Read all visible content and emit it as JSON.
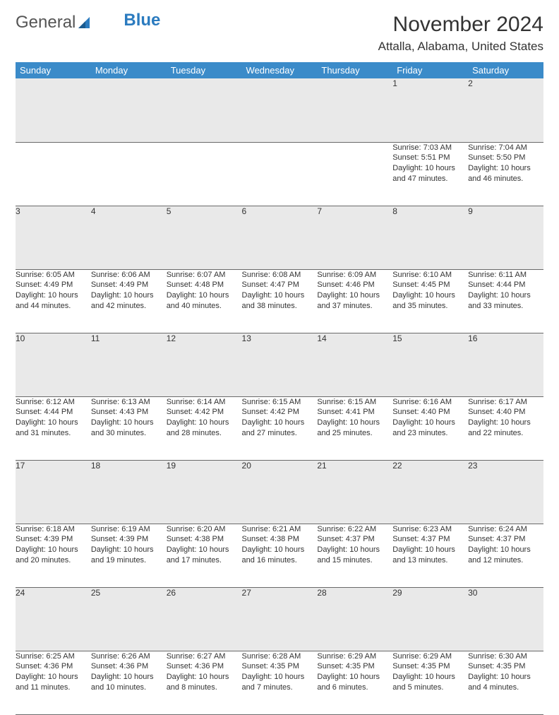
{
  "logo": {
    "text_a": "General",
    "text_b": "Blue"
  },
  "title": "November 2024",
  "location": "Attalla, Alabama, United States",
  "colors": {
    "header_bg": "#3b8bc9",
    "header_fg": "#ffffff",
    "daynum_bg": "#e9e9e9",
    "border": "#6a6a6a",
    "text": "#333333",
    "logo_blue": "#2b7bbf"
  },
  "typography": {
    "title_fontsize": 30,
    "location_fontsize": 17,
    "weekday_fontsize": 13,
    "daynum_fontsize": 12,
    "detail_fontsize": 11
  },
  "weekdays": [
    "Sunday",
    "Monday",
    "Tuesday",
    "Wednesday",
    "Thursday",
    "Friday",
    "Saturday"
  ],
  "weeks": [
    [
      null,
      null,
      null,
      null,
      null,
      {
        "n": "1",
        "sr": "Sunrise: 7:03 AM",
        "ss": "Sunset: 5:51 PM",
        "dl": "Daylight: 10 hours and 47 minutes."
      },
      {
        "n": "2",
        "sr": "Sunrise: 7:04 AM",
        "ss": "Sunset: 5:50 PM",
        "dl": "Daylight: 10 hours and 46 minutes."
      }
    ],
    [
      {
        "n": "3",
        "sr": "Sunrise: 6:05 AM",
        "ss": "Sunset: 4:49 PM",
        "dl": "Daylight: 10 hours and 44 minutes."
      },
      {
        "n": "4",
        "sr": "Sunrise: 6:06 AM",
        "ss": "Sunset: 4:49 PM",
        "dl": "Daylight: 10 hours and 42 minutes."
      },
      {
        "n": "5",
        "sr": "Sunrise: 6:07 AM",
        "ss": "Sunset: 4:48 PM",
        "dl": "Daylight: 10 hours and 40 minutes."
      },
      {
        "n": "6",
        "sr": "Sunrise: 6:08 AM",
        "ss": "Sunset: 4:47 PM",
        "dl": "Daylight: 10 hours and 38 minutes."
      },
      {
        "n": "7",
        "sr": "Sunrise: 6:09 AM",
        "ss": "Sunset: 4:46 PM",
        "dl": "Daylight: 10 hours and 37 minutes."
      },
      {
        "n": "8",
        "sr": "Sunrise: 6:10 AM",
        "ss": "Sunset: 4:45 PM",
        "dl": "Daylight: 10 hours and 35 minutes."
      },
      {
        "n": "9",
        "sr": "Sunrise: 6:11 AM",
        "ss": "Sunset: 4:44 PM",
        "dl": "Daylight: 10 hours and 33 minutes."
      }
    ],
    [
      {
        "n": "10",
        "sr": "Sunrise: 6:12 AM",
        "ss": "Sunset: 4:44 PM",
        "dl": "Daylight: 10 hours and 31 minutes."
      },
      {
        "n": "11",
        "sr": "Sunrise: 6:13 AM",
        "ss": "Sunset: 4:43 PM",
        "dl": "Daylight: 10 hours and 30 minutes."
      },
      {
        "n": "12",
        "sr": "Sunrise: 6:14 AM",
        "ss": "Sunset: 4:42 PM",
        "dl": "Daylight: 10 hours and 28 minutes."
      },
      {
        "n": "13",
        "sr": "Sunrise: 6:15 AM",
        "ss": "Sunset: 4:42 PM",
        "dl": "Daylight: 10 hours and 27 minutes."
      },
      {
        "n": "14",
        "sr": "Sunrise: 6:15 AM",
        "ss": "Sunset: 4:41 PM",
        "dl": "Daylight: 10 hours and 25 minutes."
      },
      {
        "n": "15",
        "sr": "Sunrise: 6:16 AM",
        "ss": "Sunset: 4:40 PM",
        "dl": "Daylight: 10 hours and 23 minutes."
      },
      {
        "n": "16",
        "sr": "Sunrise: 6:17 AM",
        "ss": "Sunset: 4:40 PM",
        "dl": "Daylight: 10 hours and 22 minutes."
      }
    ],
    [
      {
        "n": "17",
        "sr": "Sunrise: 6:18 AM",
        "ss": "Sunset: 4:39 PM",
        "dl": "Daylight: 10 hours and 20 minutes."
      },
      {
        "n": "18",
        "sr": "Sunrise: 6:19 AM",
        "ss": "Sunset: 4:39 PM",
        "dl": "Daylight: 10 hours and 19 minutes."
      },
      {
        "n": "19",
        "sr": "Sunrise: 6:20 AM",
        "ss": "Sunset: 4:38 PM",
        "dl": "Daylight: 10 hours and 17 minutes."
      },
      {
        "n": "20",
        "sr": "Sunrise: 6:21 AM",
        "ss": "Sunset: 4:38 PM",
        "dl": "Daylight: 10 hours and 16 minutes."
      },
      {
        "n": "21",
        "sr": "Sunrise: 6:22 AM",
        "ss": "Sunset: 4:37 PM",
        "dl": "Daylight: 10 hours and 15 minutes."
      },
      {
        "n": "22",
        "sr": "Sunrise: 6:23 AM",
        "ss": "Sunset: 4:37 PM",
        "dl": "Daylight: 10 hours and 13 minutes."
      },
      {
        "n": "23",
        "sr": "Sunrise: 6:24 AM",
        "ss": "Sunset: 4:37 PM",
        "dl": "Daylight: 10 hours and 12 minutes."
      }
    ],
    [
      {
        "n": "24",
        "sr": "Sunrise: 6:25 AM",
        "ss": "Sunset: 4:36 PM",
        "dl": "Daylight: 10 hours and 11 minutes."
      },
      {
        "n": "25",
        "sr": "Sunrise: 6:26 AM",
        "ss": "Sunset: 4:36 PM",
        "dl": "Daylight: 10 hours and 10 minutes."
      },
      {
        "n": "26",
        "sr": "Sunrise: 6:27 AM",
        "ss": "Sunset: 4:36 PM",
        "dl": "Daylight: 10 hours and 8 minutes."
      },
      {
        "n": "27",
        "sr": "Sunrise: 6:28 AM",
        "ss": "Sunset: 4:35 PM",
        "dl": "Daylight: 10 hours and 7 minutes."
      },
      {
        "n": "28",
        "sr": "Sunrise: 6:29 AM",
        "ss": "Sunset: 4:35 PM",
        "dl": "Daylight: 10 hours and 6 minutes."
      },
      {
        "n": "29",
        "sr": "Sunrise: 6:29 AM",
        "ss": "Sunset: 4:35 PM",
        "dl": "Daylight: 10 hours and 5 minutes."
      },
      {
        "n": "30",
        "sr": "Sunrise: 6:30 AM",
        "ss": "Sunset: 4:35 PM",
        "dl": "Daylight: 10 hours and 4 minutes."
      }
    ]
  ]
}
